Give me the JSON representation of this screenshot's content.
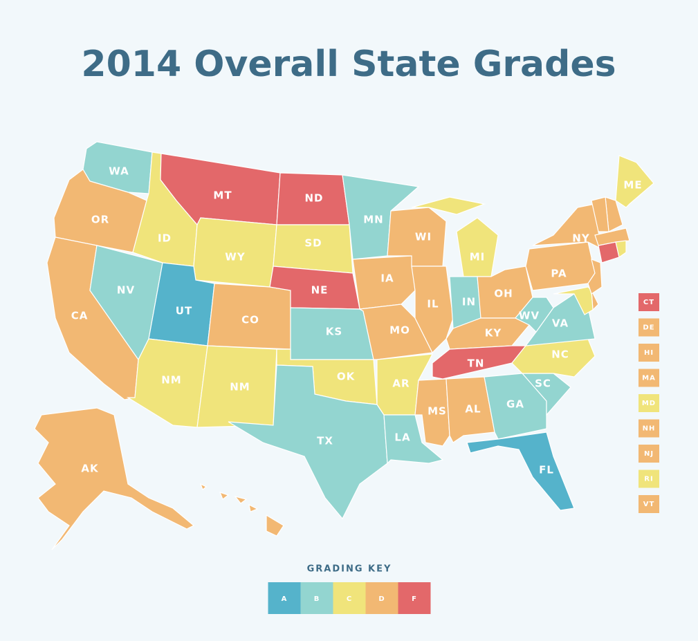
{
  "title": "2014 Overall State Grades",
  "states": [
    {
      "label": "WA",
      "grade": "B"
    },
    {
      "label": "OR",
      "grade": "D"
    },
    {
      "label": "CA",
      "grade": "D"
    },
    {
      "label": "NV",
      "grade": "B"
    },
    {
      "label": "ID",
      "grade": "C"
    },
    {
      "label": "MT",
      "grade": "F"
    },
    {
      "label": "WY",
      "grade": "C"
    },
    {
      "label": "UT",
      "grade": "A"
    },
    {
      "label": "CO",
      "grade": "D"
    },
    {
      "label": "NM",
      "grade": "C"
    },
    {
      "label": "NM",
      "grade": "C"
    },
    {
      "label": "ND",
      "grade": "F"
    },
    {
      "label": "SD",
      "grade": "C"
    },
    {
      "label": "NE",
      "grade": "F"
    },
    {
      "label": "KS",
      "grade": "B"
    },
    {
      "label": "OK",
      "grade": "C"
    },
    {
      "label": "TX",
      "grade": "B"
    },
    {
      "label": "MN",
      "grade": "B"
    },
    {
      "label": "IA",
      "grade": "D"
    },
    {
      "label": "MO",
      "grade": "D"
    },
    {
      "label": "AR",
      "grade": "C"
    },
    {
      "label": "LA",
      "grade": "B"
    },
    {
      "label": "WI",
      "grade": "D"
    },
    {
      "label": "IL",
      "grade": "D"
    },
    {
      "label": "MI",
      "grade": "C"
    },
    {
      "label": "IN",
      "grade": "B"
    },
    {
      "label": "OH",
      "grade": "D"
    },
    {
      "label": "KY",
      "grade": "D"
    },
    {
      "label": "TN",
      "grade": "F"
    },
    {
      "label": "MS",
      "grade": "D"
    },
    {
      "label": "AL",
      "grade": "D"
    },
    {
      "label": "GA",
      "grade": "B"
    },
    {
      "label": "FL",
      "grade": "A"
    },
    {
      "label": "SC",
      "grade": "B"
    },
    {
      "label": "NC",
      "grade": "C"
    },
    {
      "label": "VA",
      "grade": "B"
    },
    {
      "label": "WV",
      "grade": "B"
    },
    {
      "label": "PA",
      "grade": "D"
    },
    {
      "label": "NY",
      "grade": "D"
    },
    {
      "label": "ME",
      "grade": "C"
    },
    {
      "label": "AK",
      "grade": "D"
    }
  ],
  "small_states": [
    {
      "label": "CT",
      "grade": "F"
    },
    {
      "label": "DE",
      "grade": "D"
    },
    {
      "label": "HI",
      "grade": "D"
    },
    {
      "label": "MA",
      "grade": "D"
    },
    {
      "label": "MD",
      "grade": "C"
    },
    {
      "label": "NH",
      "grade": "D"
    },
    {
      "label": "NJ",
      "grade": "D"
    },
    {
      "label": "RI",
      "grade": "C"
    },
    {
      "label": "VT",
      "grade": "D"
    }
  ],
  "key": {
    "title": "GRADING KEY",
    "grades": [
      {
        "label": "A",
        "color": "#55b3cb"
      },
      {
        "label": "B",
        "color": "#93d5d0"
      },
      {
        "label": "C",
        "color": "#f0e47b"
      },
      {
        "label": "D",
        "color": "#f2b873"
      },
      {
        "label": "F",
        "color": "#e3686a"
      }
    ]
  }
}
